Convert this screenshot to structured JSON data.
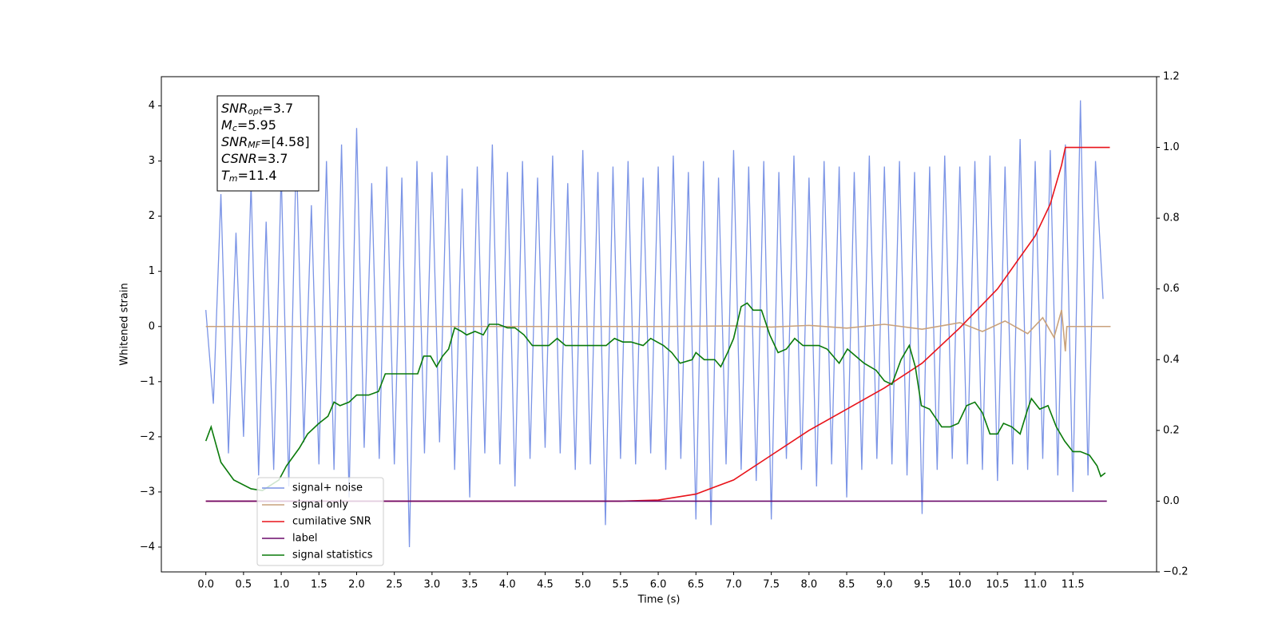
{
  "chart_data": {
    "type": "line",
    "xlabel": "Time (s)",
    "ylabel": "Whitened strain",
    "xlim": [
      -0.59,
      12.61
    ],
    "ylim": [
      -4.45,
      4.53
    ],
    "y2lim": [
      -0.2,
      1.2
    ],
    "xticks": [
      {
        "value": 0,
        "label": "0.0"
      },
      0.5,
      {
        "value": 1,
        "label": "1.0"
      },
      1.5,
      {
        "value": 2,
        "label": "2.0"
      },
      2.5,
      {
        "value": 3,
        "label": "3.0"
      },
      3.5,
      {
        "value": 4,
        "label": "4.0"
      },
      4.5,
      {
        "value": 5,
        "label": "5.0"
      },
      5.5,
      {
        "value": 6,
        "label": "6.0"
      },
      6.5,
      {
        "value": 7,
        "label": "7.0"
      },
      7.5,
      {
        "value": 8,
        "label": "8.0"
      },
      8.5,
      {
        "value": 9,
        "label": "9.0"
      },
      9.5,
      {
        "value": 10,
        "label": "10.0"
      },
      10.5,
      {
        "value": 11,
        "label": "11.0"
      },
      11.5
    ],
    "yticks": [
      {
        "value": -4,
        "label": "−4"
      },
      {
        "value": -3,
        "label": "−3"
      },
      {
        "value": -2,
        "label": "−2"
      },
      {
        "value": -1,
        "label": "−1"
      },
      0,
      1,
      2,
      3,
      4
    ],
    "y2ticks": [
      {
        "value": -0.2,
        "label": "−0.2"
      },
      {
        "value": 0,
        "label": "0.0"
      },
      0.2,
      0.4,
      0.6,
      0.8,
      {
        "value": 1,
        "label": "1.0"
      },
      1.2
    ],
    "legend": "lower left",
    "annotation_lines": [
      {
        "main": "SNR",
        "sub": "opt",
        "rest": "=3.7"
      },
      {
        "main": "M",
        "sub": "c",
        "rest": "=5.95"
      },
      {
        "main": "SNR",
        "sub": "MF",
        "rest": "=[4.58]"
      },
      {
        "main": "CSNR",
        "rest": "=3.7"
      },
      {
        "main": "T",
        "sub": "m",
        "rest": "=11.4"
      }
    ],
    "series": [
      {
        "name": "signal+ noise",
        "color": "#7b94e6",
        "x": [
          0,
          0.1,
          0.2,
          0.3,
          0.4,
          0.5,
          0.6,
          0.7,
          0.8,
          0.9,
          1,
          1.1,
          1.2,
          1.3,
          1.4,
          1.5,
          1.6,
          1.7,
          1.8,
          1.9,
          2,
          2.1,
          2.2,
          2.3,
          2.4,
          2.5,
          2.6,
          2.7,
          2.8,
          2.9,
          3,
          3.1,
          3.2,
          3.3,
          3.4,
          3.5,
          3.6,
          3.7,
          3.8,
          3.9,
          4,
          4.1,
          4.2,
          4.3,
          4.4,
          4.5,
          4.6,
          4.7,
          4.8,
          4.9,
          5,
          5.1,
          5.2,
          5.3,
          5.4,
          5.5,
          5.6,
          5.7,
          5.8,
          5.9,
          6,
          6.1,
          6.2,
          6.3,
          6.4,
          6.5,
          6.6,
          6.7,
          6.8,
          6.9,
          7,
          7.1,
          7.2,
          7.3,
          7.4,
          7.5,
          7.6,
          7.7,
          7.8,
          7.9,
          8,
          8.1,
          8.2,
          8.3,
          8.4,
          8.5,
          8.6,
          8.7,
          8.8,
          8.9,
          9,
          9.1,
          9.2,
          9.3,
          9.4,
          9.5,
          9.6,
          9.7,
          9.8,
          9.9,
          10,
          10.1,
          10.2,
          10.3,
          10.4,
          10.5,
          10.6,
          10.7,
          10.8,
          10.9,
          11,
          11.1,
          11.2,
          11.3,
          11.4,
          11.5,
          11.6,
          11.7,
          11.8,
          11.9
        ],
        "values": [
          0.3,
          -1.4,
          2.4,
          -2.3,
          1.7,
          -2.0,
          2.6,
          -2.7,
          1.9,
          -2.6,
          2.8,
          -2.9,
          3.2,
          -2.1,
          2.2,
          -2.5,
          3.0,
          -2.6,
          3.3,
          -3.1,
          3.6,
          -2.2,
          2.6,
          -2.4,
          2.9,
          -2.5,
          2.7,
          -4.0,
          3.0,
          -2.3,
          2.8,
          -2.1,
          3.1,
          -2.6,
          2.5,
          -3.1,
          2.9,
          -2.3,
          3.3,
          -2.5,
          2.8,
          -2.9,
          3.0,
          -2.4,
          2.7,
          -2.2,
          3.1,
          -2.3,
          2.6,
          -2.6,
          3.2,
          -2.5,
          2.8,
          -3.6,
          2.9,
          -2.4,
          3.0,
          -2.5,
          2.7,
          -2.3,
          2.9,
          -2.6,
          3.1,
          -2.4,
          2.8,
          -3.5,
          3.0,
          -3.6,
          2.7,
          -2.5,
          3.2,
          -2.6,
          2.9,
          -2.8,
          3.0,
          -3.5,
          2.8,
          -2.4,
          3.1,
          -2.6,
          2.7,
          -2.9,
          3.0,
          -2.5,
          2.9,
          -3.1,
          2.8,
          -2.6,
          3.1,
          -2.4,
          2.9,
          -2.5,
          3.0,
          -2.7,
          2.8,
          -3.4,
          2.9,
          -2.6,
          3.1,
          -2.4,
          2.9,
          -2.5,
          3.0,
          -2.6,
          3.1,
          -2.8,
          2.9,
          -2.5,
          3.4,
          -2.6,
          3.0,
          -2.4,
          3.2,
          -2.7,
          3.3,
          -3.0,
          4.1,
          -2.7,
          3.0,
          0.5
        ]
      },
      {
        "name": "signal only",
        "color": "#c9a27c",
        "x": [
          0,
          2,
          4,
          6,
          7,
          7.5,
          8,
          8.5,
          9,
          9.5,
          10,
          10.3,
          10.6,
          10.9,
          11.1,
          11.25,
          11.35,
          11.4,
          11.42,
          12
        ],
        "values": [
          0,
          0,
          0,
          0,
          0.01,
          -0.01,
          0.02,
          -0.03,
          0.04,
          -0.05,
          0.07,
          -0.09,
          0.1,
          -0.13,
          0.16,
          -0.2,
          0.3,
          -0.45,
          0,
          0
        ]
      },
      {
        "name": "cumilative SNR",
        "color": "#e8131a",
        "axis": "y2",
        "x": [
          0,
          5.5,
          6,
          6.5,
          7,
          7.5,
          8,
          8.5,
          9,
          9.5,
          10,
          10.5,
          11,
          11.2,
          11.35,
          11.4,
          11.99
        ],
        "values": [
          0,
          0,
          0.003,
          0.02,
          0.06,
          0.13,
          0.2,
          0.26,
          0.32,
          0.39,
          0.49,
          0.6,
          0.75,
          0.84,
          0.95,
          1,
          1
        ]
      },
      {
        "name": "label",
        "color": "#6b0a6b",
        "axis": "y2",
        "x": [
          0,
          11.95
        ],
        "values": [
          0,
          0
        ]
      },
      {
        "name": "signal statistics",
        "color": "#0a7a0a",
        "axis": "y2",
        "x": [
          0,
          0.07,
          0.2,
          0.37,
          0.6,
          0.75,
          0.97,
          1.07,
          1.24,
          1.35,
          1.5,
          1.62,
          1.7,
          1.78,
          1.9,
          2,
          2.16,
          2.29,
          2.38,
          2.49,
          2.6,
          2.7,
          2.81,
          2.89,
          2.98,
          3.06,
          3.14,
          3.22,
          3.3,
          3.39,
          3.46,
          3.57,
          3.68,
          3.76,
          3.88,
          4,
          4.1,
          4.22,
          4.33,
          4.44,
          4.55,
          4.66,
          4.77,
          4.87,
          5,
          5.17,
          5.31,
          5.42,
          5.53,
          5.64,
          5.8,
          5.9,
          6.07,
          6.18,
          6.29,
          6.45,
          6.5,
          6.61,
          6.75,
          6.83,
          6.92,
          7,
          7.1,
          7.18,
          7.26,
          7.37,
          7.48,
          7.59,
          7.7,
          7.81,
          7.92,
          8.02,
          8.13,
          8.24,
          8.4,
          8.51,
          8.62,
          8.73,
          8.89,
          9,
          9.1,
          9.22,
          9.33,
          9.41,
          9.49,
          9.6,
          9.76,
          9.87,
          9.98,
          10.09,
          10.2,
          10.3,
          10.4,
          10.5,
          10.58,
          10.69,
          10.8,
          10.9,
          10.95,
          11.06,
          11.17,
          11.28,
          11.39,
          11.5,
          11.6,
          11.72,
          11.82,
          11.87,
          11.93
        ],
        "values": [
          0.17,
          0.21,
          0.11,
          0.06,
          0.035,
          0.03,
          0.06,
          0.1,
          0.15,
          0.19,
          0.22,
          0.24,
          0.28,
          0.27,
          0.28,
          0.3,
          0.3,
          0.31,
          0.36,
          0.36,
          0.36,
          0.36,
          0.36,
          0.41,
          0.41,
          0.38,
          0.41,
          0.43,
          0.49,
          0.48,
          0.47,
          0.48,
          0.47,
          0.5,
          0.5,
          0.49,
          0.49,
          0.47,
          0.44,
          0.44,
          0.44,
          0.46,
          0.44,
          0.44,
          0.44,
          0.44,
          0.44,
          0.46,
          0.45,
          0.45,
          0.44,
          0.46,
          0.44,
          0.42,
          0.39,
          0.4,
          0.42,
          0.4,
          0.4,
          0.38,
          0.42,
          0.46,
          0.55,
          0.56,
          0.54,
          0.54,
          0.47,
          0.42,
          0.43,
          0.46,
          0.44,
          0.44,
          0.44,
          0.43,
          0.39,
          0.43,
          0.41,
          0.39,
          0.37,
          0.34,
          0.33,
          0.4,
          0.44,
          0.38,
          0.27,
          0.26,
          0.21,
          0.21,
          0.22,
          0.27,
          0.28,
          0.25,
          0.19,
          0.19,
          0.22,
          0.21,
          0.19,
          0.26,
          0.29,
          0.26,
          0.27,
          0.21,
          0.17,
          0.14,
          0.14,
          0.13,
          0.1,
          0.07,
          0.08
        ]
      }
    ]
  }
}
